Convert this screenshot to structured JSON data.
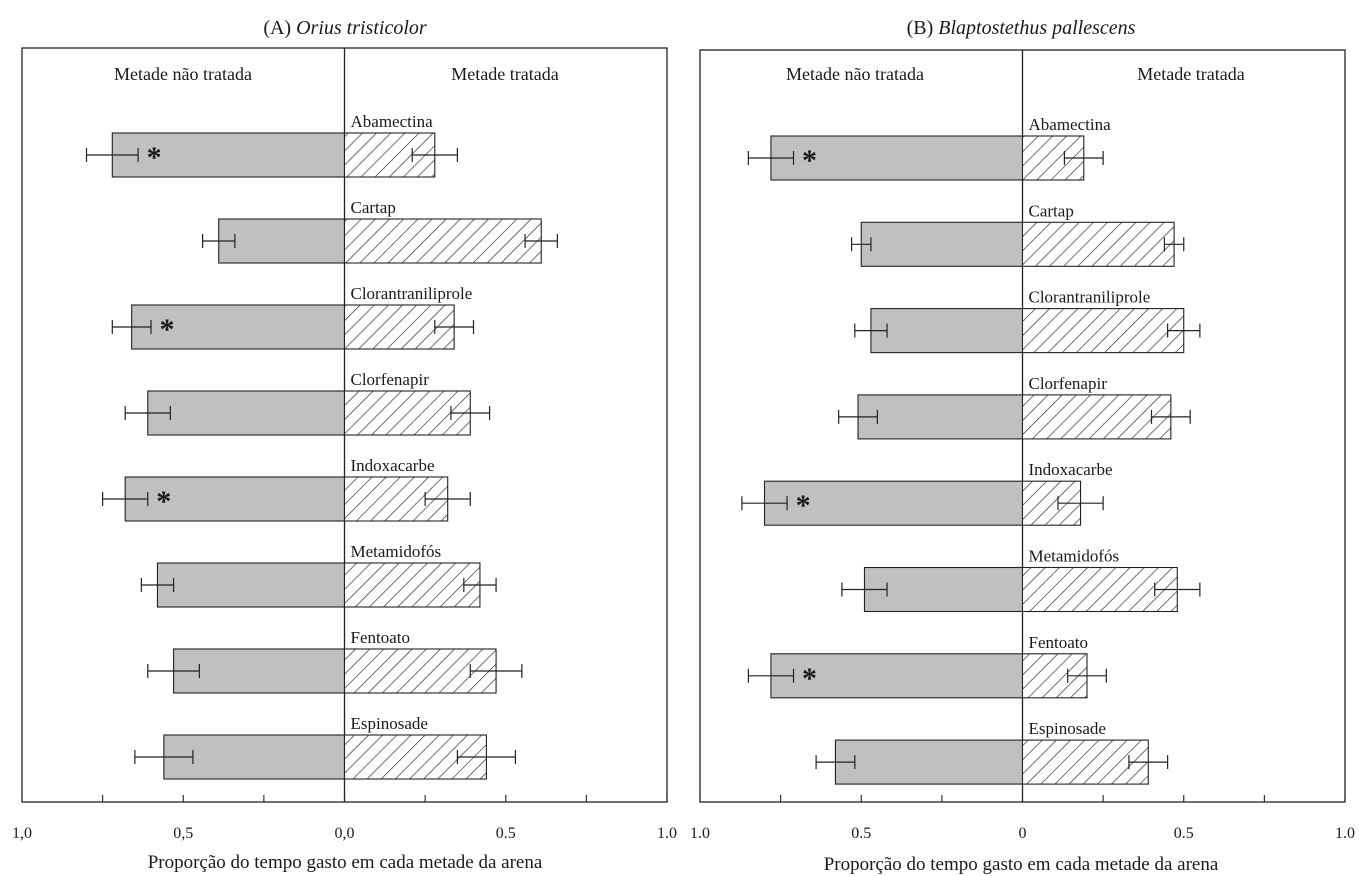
{
  "chart_data": [
    {
      "type": "bar",
      "orientation": "horizontal-diverging",
      "panel_letter": "(A)",
      "title_species": "Orius tristicolor",
      "left_header": "Metade não tratada",
      "right_header": "Metade tratada",
      "xlabel": "Proporção do tempo gasto em cada metade da arena",
      "x_ticks": [
        "1,0",
        "0,5",
        "0,0",
        "0.5",
        "1.0"
      ],
      "xlim": [
        -1.0,
        1.0
      ],
      "categories": [
        "Abamectina",
        "Cartap",
        "Clorantraniliprole",
        "Clorfenapir",
        "Indoxacarbe",
        "Metamidofós",
        "Fentoato",
        "Espinosade"
      ],
      "series": [
        {
          "side": "untreated",
          "values": [
            0.72,
            0.39,
            0.66,
            0.61,
            0.68,
            0.58,
            0.53,
            0.56
          ],
          "errors": [
            0.08,
            0.05,
            0.06,
            0.07,
            0.07,
            0.05,
            0.08,
            0.09
          ]
        },
        {
          "side": "treated",
          "values": [
            0.28,
            0.61,
            0.34,
            0.39,
            0.32,
            0.42,
            0.47,
            0.44
          ],
          "errors": [
            0.07,
            0.05,
            0.06,
            0.06,
            0.07,
            0.05,
            0.08,
            0.09
          ]
        }
      ],
      "significant": [
        true,
        false,
        true,
        false,
        true,
        false,
        false,
        false
      ],
      "significance_marker": "*"
    },
    {
      "type": "bar",
      "orientation": "horizontal-diverging",
      "panel_letter": "(B)",
      "title_species": "Blaptostethus pallescens",
      "left_header": "Metade não tratada",
      "right_header": "Metade tratada",
      "xlabel": "Proporção do tempo gasto em cada metade da arena",
      "x_ticks": [
        "1.0",
        "0.5",
        "0",
        "0.5",
        "1.0"
      ],
      "xlim": [
        -1.0,
        1.0
      ],
      "categories": [
        "Abamectina",
        "Cartap",
        "Clorantraniliprole",
        "Clorfenapir",
        "Indoxacarbe",
        "Metamidofós",
        "Fentoato",
        "Espinosade"
      ],
      "series": [
        {
          "side": "untreated",
          "values": [
            0.78,
            0.5,
            0.47,
            0.51,
            0.8,
            0.49,
            0.78,
            0.58
          ],
          "errors": [
            0.07,
            0.03,
            0.05,
            0.06,
            0.07,
            0.07,
            0.07,
            0.06
          ]
        },
        {
          "side": "treated",
          "values": [
            0.19,
            0.47,
            0.5,
            0.46,
            0.18,
            0.48,
            0.2,
            0.39
          ],
          "errors": [
            0.06,
            0.03,
            0.05,
            0.06,
            0.07,
            0.07,
            0.06,
            0.06
          ]
        }
      ],
      "significant": [
        true,
        false,
        false,
        false,
        true,
        false,
        true,
        false
      ],
      "significance_marker": "*"
    }
  ],
  "colors": {
    "untreated_fill": "#c0c0c0",
    "treated_hatch": "#333333",
    "axis": "#222222"
  }
}
